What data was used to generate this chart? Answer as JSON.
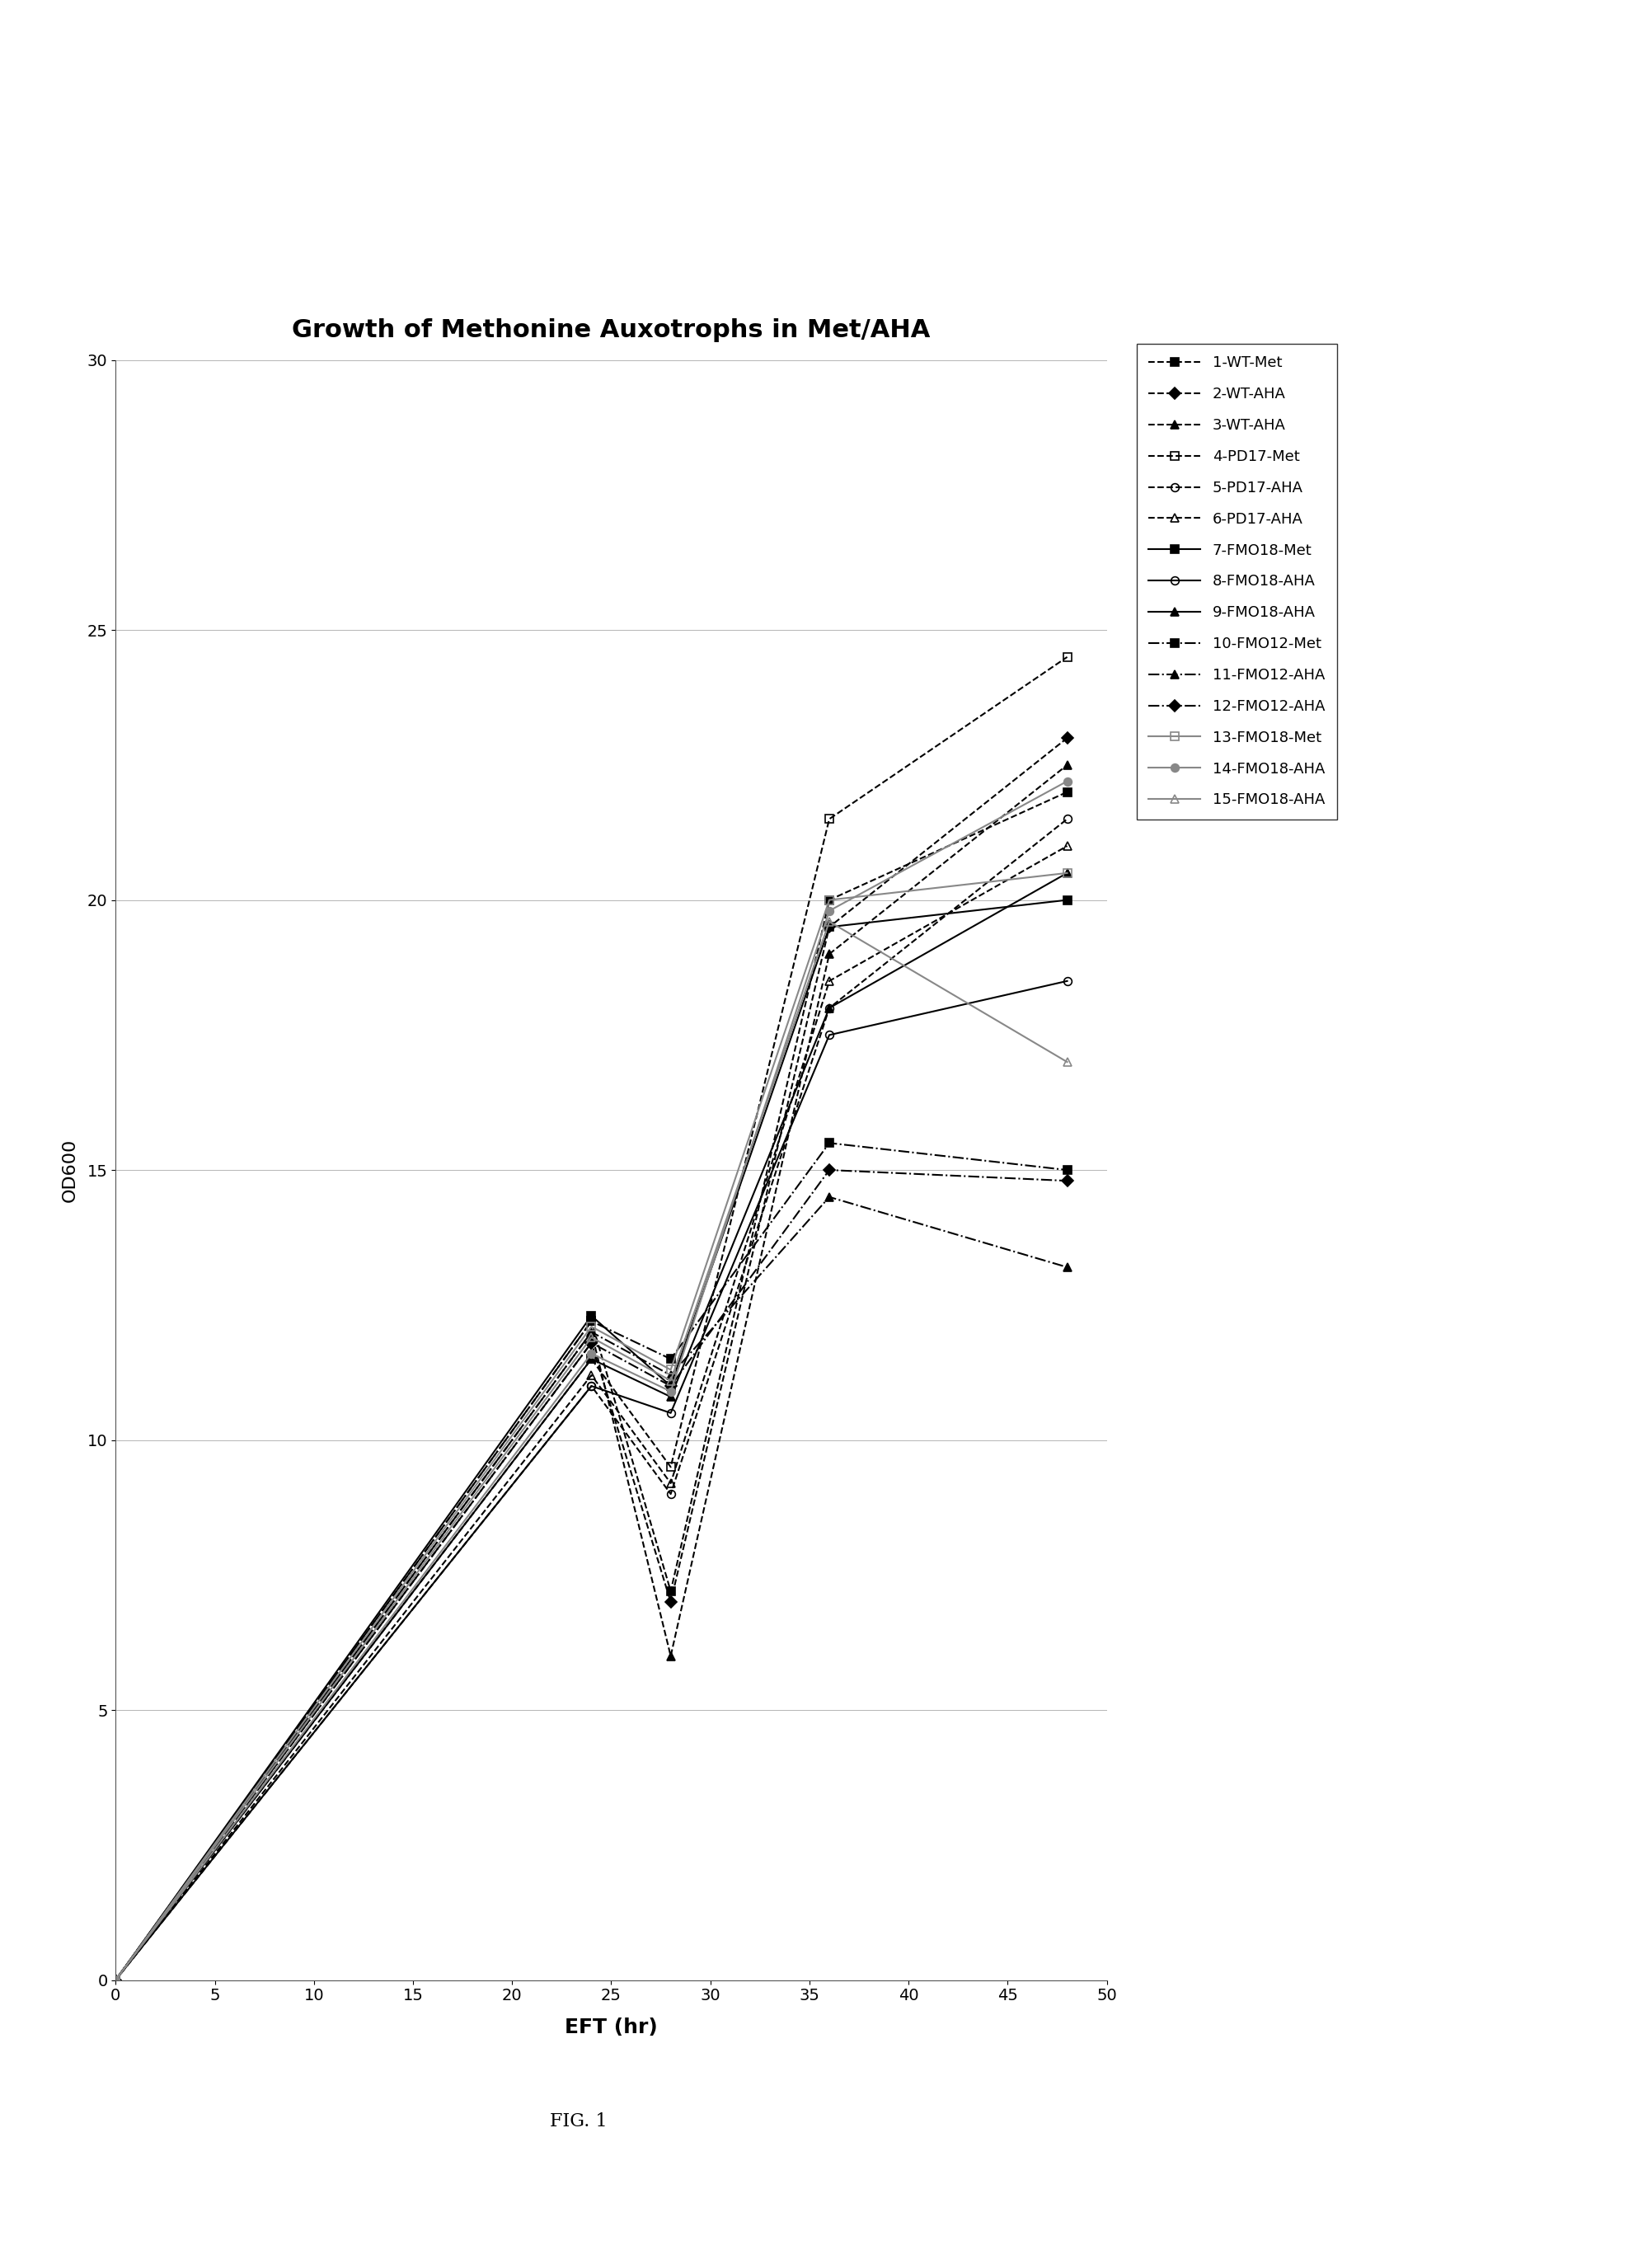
{
  "title": "Growth of Methonine Auxotrophs in Met/AHA",
  "xlabel": "EFT (hr)",
  "ylabel": "OD600",
  "fig_note": "FIG. 1",
  "xlim": [
    0,
    50
  ],
  "ylim": [
    0,
    30
  ],
  "xticks": [
    0,
    5,
    10,
    15,
    20,
    25,
    30,
    35,
    40,
    45,
    50
  ],
  "yticks": [
    0,
    5,
    10,
    15,
    20,
    25,
    30
  ],
  "series": [
    {
      "label": "1-WT-Met",
      "x": [
        0,
        24,
        28,
        36,
        48
      ],
      "y": [
        0,
        12.2,
        7.2,
        20.0,
        22.0
      ],
      "marker": "s",
      "fillstyle": "full",
      "linestyle": "--",
      "color": "#000000"
    },
    {
      "label": "2-WT-AHA",
      "x": [
        0,
        24,
        28,
        36,
        48
      ],
      "y": [
        0,
        11.8,
        7.0,
        19.5,
        23.0
      ],
      "marker": "D",
      "fillstyle": "full",
      "linestyle": "--",
      "color": "#000000"
    },
    {
      "label": "3-WT-AHA",
      "x": [
        0,
        24,
        28,
        36,
        48
      ],
      "y": [
        0,
        12.0,
        6.0,
        19.0,
        22.5
      ],
      "marker": "^",
      "fillstyle": "full",
      "linestyle": "--",
      "color": "#000000"
    },
    {
      "label": "4-PD17-Met",
      "x": [
        0,
        24,
        28,
        36,
        48
      ],
      "y": [
        0,
        11.5,
        9.5,
        21.5,
        24.5
      ],
      "marker": "s",
      "fillstyle": "none",
      "linestyle": "--",
      "color": "#000000"
    },
    {
      "label": "5-PD17-AHA",
      "x": [
        0,
        24,
        28,
        36,
        48
      ],
      "y": [
        0,
        11.0,
        9.0,
        18.0,
        21.5
      ],
      "marker": "o",
      "fillstyle": "none",
      "linestyle": "--",
      "color": "#000000"
    },
    {
      "label": "6-PD17-AHA",
      "x": [
        0,
        24,
        28,
        36,
        48
      ],
      "y": [
        0,
        11.2,
        9.2,
        18.5,
        21.0
      ],
      "marker": "^",
      "fillstyle": "none",
      "linestyle": "--",
      "color": "#000000"
    },
    {
      "label": "7-FMO18-Met",
      "x": [
        0,
        24,
        28,
        36,
        48
      ],
      "y": [
        0,
        12.3,
        11.0,
        19.5,
        20.0
      ],
      "marker": "s",
      "fillstyle": "full",
      "linestyle": "-",
      "color": "#000000"
    },
    {
      "label": "8-FMO18-AHA",
      "x": [
        0,
        24,
        28,
        36,
        48
      ],
      "y": [
        0,
        11.0,
        10.5,
        17.5,
        18.5
      ],
      "marker": "o",
      "fillstyle": "none",
      "linestyle": "-",
      "color": "#000000"
    },
    {
      "label": "9-FMO18-AHA",
      "x": [
        0,
        24,
        28,
        36,
        48
      ],
      "y": [
        0,
        11.5,
        10.8,
        18.0,
        20.5
      ],
      "marker": "^",
      "fillstyle": "full",
      "linestyle": "-",
      "color": "#000000"
    },
    {
      "label": "10-FMO12-Met",
      "x": [
        0,
        24,
        28,
        36,
        48
      ],
      "y": [
        0,
        12.2,
        11.5,
        15.5,
        15.0
      ],
      "marker": "s",
      "fillstyle": "full",
      "linestyle": "-.",
      "color": "#000000"
    },
    {
      "label": "11-FMO12-AHA",
      "x": [
        0,
        24,
        28,
        36,
        48
      ],
      "y": [
        0,
        12.0,
        11.2,
        14.5,
        13.2
      ],
      "marker": "^",
      "fillstyle": "full",
      "linestyle": "-.",
      "color": "#000000"
    },
    {
      "label": "12-FMO12-AHA",
      "x": [
        0,
        24,
        28,
        36,
        48
      ],
      "y": [
        0,
        11.8,
        11.0,
        15.0,
        14.8
      ],
      "marker": "D",
      "fillstyle": "full",
      "linestyle": "-.",
      "color": "#000000"
    },
    {
      "label": "13-FMO18-Met",
      "x": [
        0,
        24,
        28,
        36,
        48
      ],
      "y": [
        0,
        12.1,
        11.3,
        20.0,
        20.5
      ],
      "marker": "s",
      "fillstyle": "none",
      "linestyle": "-",
      "color": "#888888"
    },
    {
      "label": "14-FMO18-AHA",
      "x": [
        0,
        24,
        28,
        36,
        48
      ],
      "y": [
        0,
        11.6,
        10.9,
        19.8,
        22.2
      ],
      "marker": "o",
      "fillstyle": "full",
      "linestyle": "-",
      "color": "#888888"
    },
    {
      "label": "15-FMO18-AHA",
      "x": [
        0,
        24,
        28,
        36,
        48
      ],
      "y": [
        0,
        11.9,
        11.1,
        19.6,
        17.0
      ],
      "marker": "^",
      "fillstyle": "none",
      "linestyle": "-",
      "color": "#888888"
    }
  ]
}
